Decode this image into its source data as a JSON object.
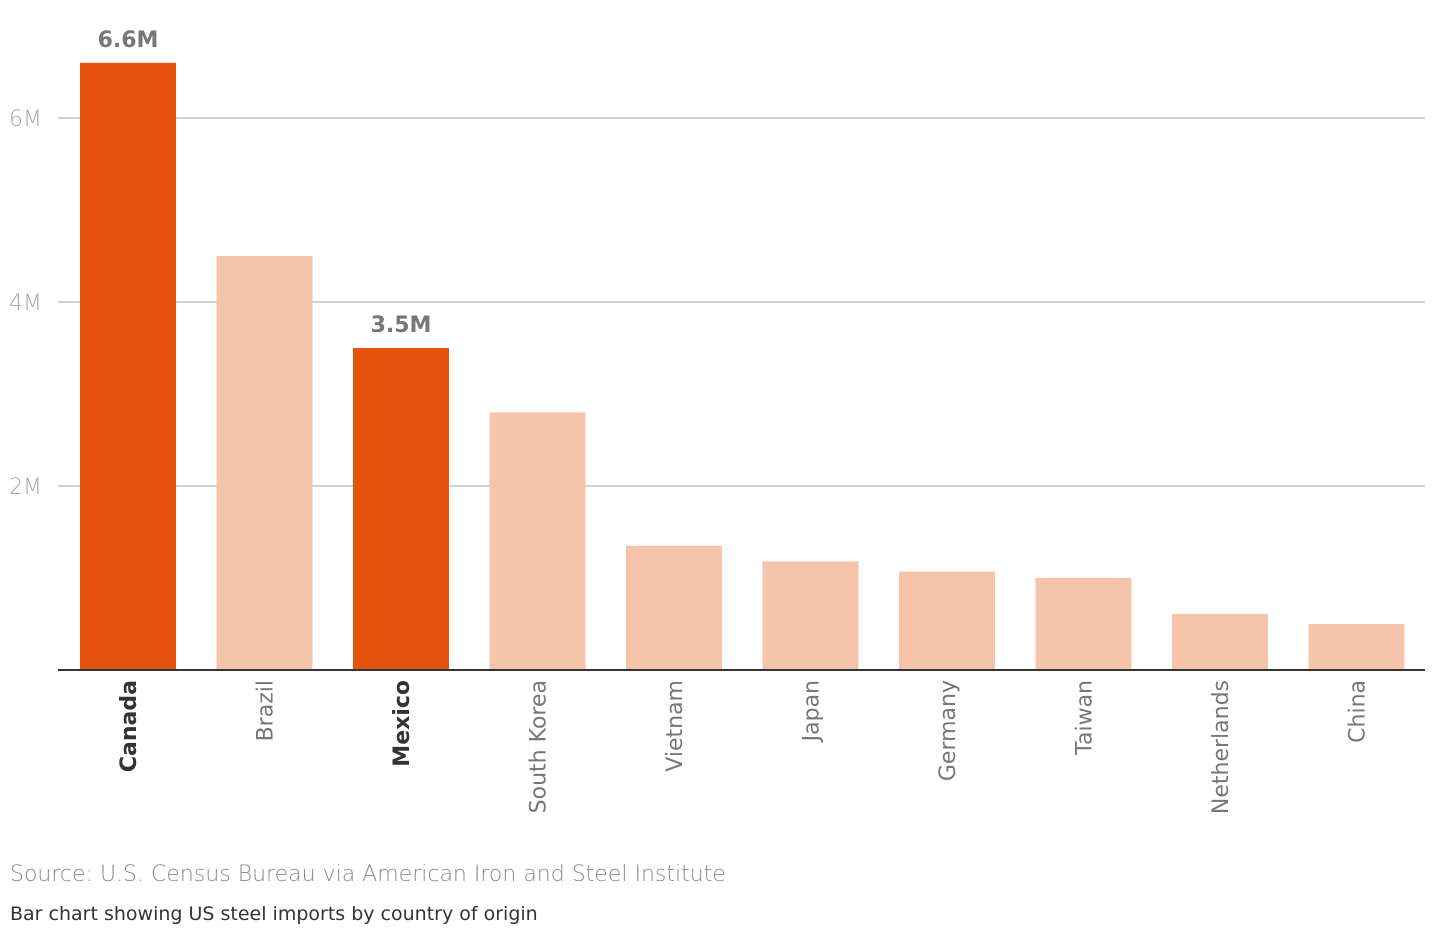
{
  "chart_data": {
    "type": "bar",
    "title": "",
    "xlabel": "",
    "ylabel": "",
    "ylim": [
      0,
      6600000
    ],
    "yticks": [
      {
        "value": 2000000,
        "label": "2M"
      },
      {
        "value": 4000000,
        "label": "4M"
      },
      {
        "value": 6000000,
        "label": "6M"
      }
    ],
    "grid": true,
    "categories": [
      "Canada",
      "Brazil",
      "Mexico",
      "South Korea",
      "Vietnam",
      "Japan",
      "Germany",
      "Taiwan",
      "Netherlands",
      "China"
    ],
    "values": [
      6600000,
      4500000,
      3500000,
      2800000,
      1350000,
      1180000,
      1070000,
      1000000,
      610000,
      500000
    ],
    "highlighted": [
      true,
      false,
      true,
      false,
      false,
      false,
      false,
      false,
      false,
      false
    ],
    "data_labels": [
      "6.6M",
      "",
      "3.5M",
      "",
      "",
      "",
      "",
      "",
      "",
      ""
    ],
    "colors": {
      "highlight": "#E5540E",
      "normal": "#F6C4AB",
      "grid": "#b8b8b8",
      "axis": "#333333",
      "tick_label": "#a6a6a6",
      "data_label": "#777777"
    }
  },
  "footer": {
    "source": "Source: U.S. Census Bureau via American Iron and Steel Institute",
    "caption": "Bar chart showing US steel imports by country of origin"
  }
}
